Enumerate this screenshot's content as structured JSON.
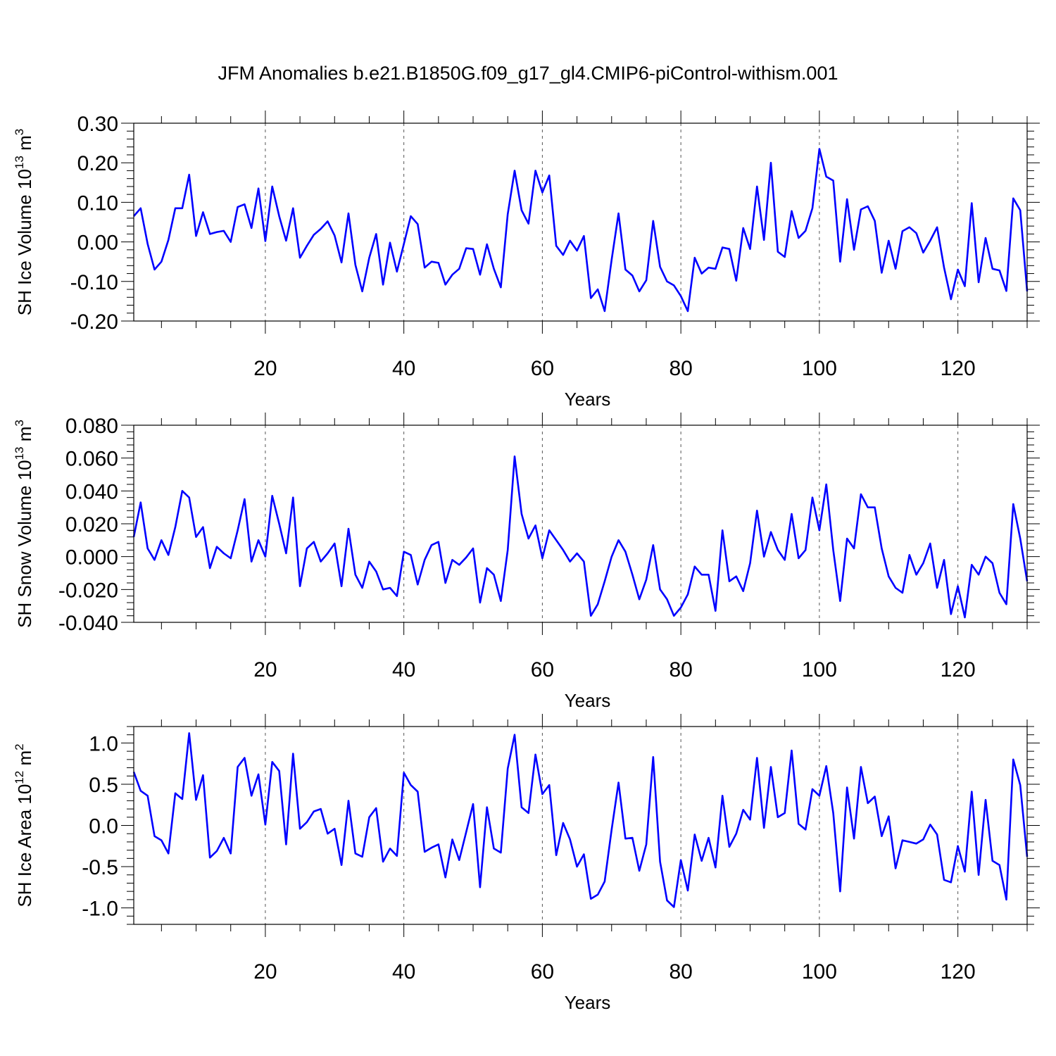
{
  "chart_data": {
    "title": "JFM Anomalies b.e21.B1850G.f09_g17_gl4.CMIP6-piControl-withism.001",
    "type": "line",
    "line_color": "#0000ff",
    "grid": "vertical dashed at major x ticks",
    "panels": [
      {
        "type": "line",
        "ylabel": {
          "main": "SH Ice Volume 10",
          "exponent": "13",
          "units": " m",
          "unit_exponent": "3"
        },
        "xlabel": "Years",
        "xlim": [
          1,
          130
        ],
        "ylim": [
          -0.2,
          0.3
        ],
        "xticks": [
          20,
          40,
          60,
          80,
          100,
          120
        ],
        "xtick_labels": [
          "20",
          "40",
          "60",
          "80",
          "100",
          "120"
        ],
        "yticks": [
          -0.2,
          -0.1,
          0.0,
          0.1,
          0.2,
          0.3
        ],
        "ytick_labels": [
          "-0.20",
          "-0.10",
          "0.00",
          "0.10",
          "0.20",
          "0.30"
        ],
        "series": [
          {
            "name": "SH Ice Volume",
            "x_start": 1,
            "values": [
              0.065,
              0.085,
              -0.005,
              -0.07,
              -0.05,
              0.005,
              0.085,
              0.085,
              0.17,
              0.015,
              0.075,
              0.02,
              0.025,
              0.028,
              0.0,
              0.088,
              0.095,
              0.035,
              0.135,
              0.002,
              0.14,
              0.065,
              0.003,
              0.085,
              -0.04,
              -0.01,
              0.018,
              0.033,
              0.052,
              0.016,
              -0.052,
              0.072,
              -0.058,
              -0.125,
              -0.04,
              0.02,
              -0.108,
              -0.002,
              -0.075,
              -0.005,
              0.065,
              0.045,
              -0.065,
              -0.05,
              -0.053,
              -0.108,
              -0.083,
              -0.068,
              -0.016,
              -0.018,
              -0.083,
              -0.006,
              -0.068,
              -0.115,
              0.07,
              0.18,
              0.08,
              0.046,
              0.18,
              0.125,
              0.168,
              -0.01,
              -0.033,
              0.003,
              -0.022,
              0.015,
              -0.142,
              -0.12,
              -0.175,
              -0.045,
              0.072,
              -0.07,
              -0.085,
              -0.125,
              -0.097,
              0.053,
              -0.063,
              -0.1,
              -0.11,
              -0.137,
              -0.175,
              -0.04,
              -0.08,
              -0.065,
              -0.068,
              -0.014,
              -0.018,
              -0.098,
              0.035,
              -0.018,
              0.14,
              0.005,
              0.2,
              -0.025,
              -0.038,
              0.078,
              0.01,
              0.028,
              0.085,
              0.235,
              0.165,
              0.155,
              -0.05,
              0.108,
              -0.02,
              0.082,
              0.09,
              0.053,
              -0.078,
              0.003,
              -0.068,
              0.027,
              0.037,
              0.022,
              -0.027,
              0.003,
              0.037,
              -0.065,
              -0.145,
              -0.07,
              -0.112,
              0.098,
              -0.102,
              0.01,
              -0.068,
              -0.072,
              -0.124,
              0.11,
              0.08,
              -0.125
            ]
          }
        ]
      },
      {
        "type": "line",
        "ylabel": {
          "main": "SH Snow Volume 10",
          "exponent": "13",
          "units": " m",
          "unit_exponent": "3"
        },
        "xlabel": "Years",
        "xlim": [
          1,
          130
        ],
        "ylim": [
          -0.04,
          0.08
        ],
        "xticks": [
          20,
          40,
          60,
          80,
          100,
          120
        ],
        "xtick_labels": [
          "20",
          "40",
          "60",
          "80",
          "100",
          "120"
        ],
        "yticks": [
          -0.04,
          -0.02,
          0.0,
          0.02,
          0.04,
          0.06,
          0.08
        ],
        "ytick_labels": [
          "-0.040",
          "-0.020",
          "0.000",
          "0.020",
          "0.040",
          "0.060",
          "0.080"
        ],
        "series": [
          {
            "name": "SH Snow Volume",
            "x_start": 1,
            "values": [
              0.012,
              0.033,
              0.005,
              -0.002,
              0.01,
              0.001,
              0.018,
              0.04,
              0.036,
              0.012,
              0.018,
              -0.007,
              0.006,
              0.002,
              -0.001,
              0.016,
              0.035,
              -0.003,
              0.01,
              0.0,
              0.037,
              0.02,
              0.002,
              0.036,
              -0.018,
              0.005,
              0.009,
              -0.003,
              0.002,
              0.008,
              -0.018,
              0.017,
              -0.011,
              -0.019,
              -0.003,
              -0.009,
              -0.02,
              -0.019,
              -0.024,
              0.003,
              0.001,
              -0.017,
              -0.002,
              0.007,
              0.009,
              -0.016,
              -0.002,
              -0.005,
              -0.0005,
              0.005,
              -0.028,
              -0.007,
              -0.011,
              -0.027,
              0.004,
              0.061,
              0.026,
              0.011,
              0.019,
              -0.001,
              0.016,
              0.01,
              0.004,
              -0.003,
              0.002,
              -0.003,
              -0.036,
              -0.029,
              -0.015,
              0.0,
              0.01,
              0.003,
              -0.011,
              -0.026,
              -0.014,
              0.007,
              -0.02,
              -0.026,
              -0.036,
              -0.031,
              -0.023,
              -0.006,
              -0.011,
              -0.011,
              -0.033,
              0.016,
              -0.015,
              -0.012,
              -0.021,
              -0.004,
              0.028,
              0.0,
              0.015,
              0.004,
              -0.002,
              0.026,
              -0.001,
              0.004,
              0.036,
              0.016,
              0.044,
              0.004,
              -0.027,
              0.011,
              0.005,
              0.038,
              0.03,
              0.03,
              0.005,
              -0.012,
              -0.019,
              -0.022,
              0.001,
              -0.011,
              -0.004,
              0.008,
              -0.019,
              -0.002,
              -0.035,
              -0.018,
              -0.037,
              -0.005,
              -0.011,
              0.0,
              -0.004,
              -0.022,
              -0.029,
              0.032,
              0.011,
              -0.015
            ]
          }
        ]
      },
      {
        "type": "line",
        "ylabel": {
          "main": "SH Ice Area 10",
          "exponent": "12",
          "units": " m",
          "unit_exponent": "2"
        },
        "xlabel": "Years",
        "xlim": [
          1,
          130
        ],
        "ylim": [
          -1.2,
          1.2
        ],
        "xticks": [
          20,
          40,
          60,
          80,
          100,
          120
        ],
        "xtick_labels": [
          "20",
          "40",
          "60",
          "80",
          "100",
          "120"
        ],
        "yticks": [
          -1.0,
          -0.5,
          0.0,
          0.5,
          1.0
        ],
        "ytick_labels": [
          "-1.0",
          "-0.5",
          "0.0",
          "0.5",
          "1.0"
        ],
        "series": [
          {
            "name": "SH Ice Area",
            "x_start": 1,
            "values": [
              0.65,
              0.42,
              0.36,
              -0.13,
              -0.18,
              -0.34,
              0.39,
              0.32,
              1.12,
              0.31,
              0.61,
              -0.39,
              -0.31,
              -0.15,
              -0.34,
              0.71,
              0.82,
              0.36,
              0.62,
              0.01,
              0.77,
              0.66,
              -0.23,
              0.87,
              -0.04,
              0.04,
              0.17,
              0.2,
              -0.1,
              -0.04,
              -0.48,
              0.3,
              -0.34,
              -0.38,
              0.1,
              0.21,
              -0.44,
              -0.28,
              -0.37,
              0.64,
              0.49,
              0.41,
              -0.32,
              -0.27,
              -0.23,
              -0.63,
              -0.17,
              -0.42,
              -0.08,
              0.26,
              -0.75,
              0.22,
              -0.28,
              -0.33,
              0.69,
              1.1,
              0.22,
              0.15,
              0.86,
              0.38,
              0.49,
              -0.36,
              0.03,
              -0.17,
              -0.5,
              -0.35,
              -0.89,
              -0.84,
              -0.68,
              -0.05,
              0.52,
              -0.16,
              -0.15,
              -0.55,
              -0.23,
              0.83,
              -0.44,
              -0.91,
              -0.99,
              -0.42,
              -0.79,
              -0.11,
              -0.43,
              -0.15,
              -0.51,
              0.36,
              -0.26,
              -0.1,
              0.19,
              0.07,
              0.82,
              -0.03,
              0.71,
              0.1,
              0.15,
              0.91,
              0.02,
              -0.05,
              0.44,
              0.36,
              0.72,
              0.15,
              -0.8,
              0.46,
              -0.16,
              0.71,
              0.27,
              0.35,
              -0.13,
              0.11,
              -0.52,
              -0.18,
              -0.2,
              -0.22,
              -0.17,
              0.01,
              -0.11,
              -0.66,
              -0.69,
              -0.25,
              -0.56,
              0.41,
              -0.6,
              0.31,
              -0.43,
              -0.48,
              -0.9,
              0.8,
              0.49,
              -0.38
            ]
          }
        ]
      }
    ]
  }
}
